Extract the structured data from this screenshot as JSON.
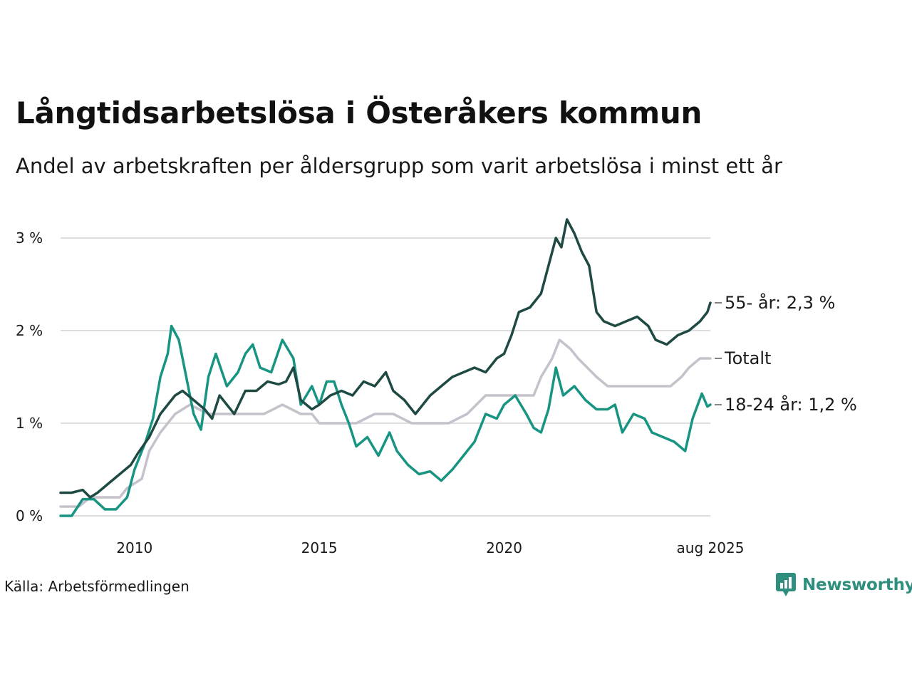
{
  "header": {
    "title": "Långtidsarbetslösa i Österåkers kommun",
    "subtitle": "Andel av arbetskraften per åldersgrupp som varit arbetslösa i minst ett år"
  },
  "footer": {
    "source": "Källa: Arbetsförmedlingen",
    "brand": "Newsworthy"
  },
  "colors": {
    "age_55": "#1f4a44",
    "total": "#c5c2cc",
    "age_18_24": "#189483",
    "grid": "#dddddd"
  },
  "chart_data": {
    "type": "line",
    "x_range": [
      2008.0,
      2025.58
    ],
    "ylim": [
      0,
      3.3
    ],
    "y_ticks": [
      {
        "value": 0,
        "label": "0 %"
      },
      {
        "value": 1,
        "label": "1 %"
      },
      {
        "value": 2,
        "label": "2 %"
      },
      {
        "value": 3,
        "label": "3 %"
      }
    ],
    "x_ticks": [
      {
        "value": 2010,
        "label": "2010"
      },
      {
        "value": 2015,
        "label": "2015"
      },
      {
        "value": 2020,
        "label": "2020"
      },
      {
        "value": 2025.58,
        "label": "aug 2025"
      }
    ],
    "grid": true,
    "series": [
      {
        "key": "total",
        "name": "Totalt",
        "end_label": "Totalt",
        "color": "#c5c2cc",
        "points": [
          [
            2008.0,
            0.1
          ],
          [
            2008.5,
            0.1
          ],
          [
            2008.8,
            0.2
          ],
          [
            2009.2,
            0.2
          ],
          [
            2009.6,
            0.2
          ],
          [
            2009.8,
            0.3
          ],
          [
            2010.2,
            0.4
          ],
          [
            2010.4,
            0.7
          ],
          [
            2010.7,
            0.9
          ],
          [
            2010.9,
            1.0
          ],
          [
            2011.1,
            1.1
          ],
          [
            2011.5,
            1.2
          ],
          [
            2012.0,
            1.1
          ],
          [
            2012.5,
            1.1
          ],
          [
            2013.0,
            1.1
          ],
          [
            2013.5,
            1.1
          ],
          [
            2014.0,
            1.2
          ],
          [
            2014.5,
            1.1
          ],
          [
            2014.8,
            1.1
          ],
          [
            2015.0,
            1.0
          ],
          [
            2015.5,
            1.0
          ],
          [
            2016.0,
            1.0
          ],
          [
            2016.5,
            1.1
          ],
          [
            2017.0,
            1.1
          ],
          [
            2017.5,
            1.0
          ],
          [
            2018.0,
            1.0
          ],
          [
            2018.5,
            1.0
          ],
          [
            2019.0,
            1.1
          ],
          [
            2019.5,
            1.3
          ],
          [
            2020.0,
            1.3
          ],
          [
            2020.5,
            1.3
          ],
          [
            2020.8,
            1.3
          ],
          [
            2021.0,
            1.5
          ],
          [
            2021.3,
            1.7
          ],
          [
            2021.5,
            1.9
          ],
          [
            2021.8,
            1.8
          ],
          [
            2022.0,
            1.7
          ],
          [
            2022.5,
            1.5
          ],
          [
            2022.8,
            1.4
          ],
          [
            2023.2,
            1.4
          ],
          [
            2023.6,
            1.4
          ],
          [
            2024.0,
            1.4
          ],
          [
            2024.5,
            1.4
          ],
          [
            2024.8,
            1.5
          ],
          [
            2025.0,
            1.6
          ],
          [
            2025.3,
            1.7
          ],
          [
            2025.58,
            1.7
          ]
        ]
      },
      {
        "key": "age_18_24",
        "name": "18-24 år",
        "end_label": "18-24 år: 1,2 %",
        "color": "#189483",
        "points": [
          [
            2008.0,
            0.0
          ],
          [
            2008.3,
            0.0
          ],
          [
            2008.6,
            0.18
          ],
          [
            2008.9,
            0.18
          ],
          [
            2009.2,
            0.07
          ],
          [
            2009.5,
            0.07
          ],
          [
            2009.8,
            0.2
          ],
          [
            2010.0,
            0.5
          ],
          [
            2010.3,
            0.8
          ],
          [
            2010.5,
            1.05
          ],
          [
            2010.7,
            1.5
          ],
          [
            2010.9,
            1.75
          ],
          [
            2011.0,
            2.05
          ],
          [
            2011.2,
            1.9
          ],
          [
            2011.4,
            1.5
          ],
          [
            2011.6,
            1.1
          ],
          [
            2011.8,
            0.93
          ],
          [
            2012.0,
            1.5
          ],
          [
            2012.2,
            1.75
          ],
          [
            2012.5,
            1.4
          ],
          [
            2012.8,
            1.55
          ],
          [
            2013.0,
            1.75
          ],
          [
            2013.2,
            1.85
          ],
          [
            2013.4,
            1.6
          ],
          [
            2013.7,
            1.55
          ],
          [
            2014.0,
            1.9
          ],
          [
            2014.3,
            1.7
          ],
          [
            2014.5,
            1.2
          ],
          [
            2014.8,
            1.4
          ],
          [
            2015.0,
            1.2
          ],
          [
            2015.2,
            1.45
          ],
          [
            2015.4,
            1.45
          ],
          [
            2015.6,
            1.2
          ],
          [
            2015.8,
            1.0
          ],
          [
            2016.0,
            0.75
          ],
          [
            2016.3,
            0.85
          ],
          [
            2016.6,
            0.65
          ],
          [
            2016.9,
            0.9
          ],
          [
            2017.1,
            0.7
          ],
          [
            2017.4,
            0.55
          ],
          [
            2017.7,
            0.45
          ],
          [
            2018.0,
            0.48
          ],
          [
            2018.3,
            0.38
          ],
          [
            2018.6,
            0.5
          ],
          [
            2018.9,
            0.65
          ],
          [
            2019.2,
            0.8
          ],
          [
            2019.5,
            1.1
          ],
          [
            2019.8,
            1.05
          ],
          [
            2020.0,
            1.2
          ],
          [
            2020.3,
            1.3
          ],
          [
            2020.6,
            1.1
          ],
          [
            2020.8,
            0.95
          ],
          [
            2021.0,
            0.9
          ],
          [
            2021.2,
            1.15
          ],
          [
            2021.4,
            1.6
          ],
          [
            2021.6,
            1.3
          ],
          [
            2021.9,
            1.4
          ],
          [
            2022.2,
            1.25
          ],
          [
            2022.5,
            1.15
          ],
          [
            2022.8,
            1.15
          ],
          [
            2023.0,
            1.2
          ],
          [
            2023.2,
            0.9
          ],
          [
            2023.5,
            1.1
          ],
          [
            2023.8,
            1.05
          ],
          [
            2024.0,
            0.9
          ],
          [
            2024.3,
            0.85
          ],
          [
            2024.6,
            0.8
          ],
          [
            2024.9,
            0.7
          ],
          [
            2025.1,
            1.05
          ],
          [
            2025.35,
            1.32
          ],
          [
            2025.5,
            1.18
          ],
          [
            2025.58,
            1.2
          ]
        ]
      },
      {
        "key": "age_55",
        "name": "55- år",
        "end_label": "55- år: 2,3 %",
        "color": "#1f4a44",
        "points": [
          [
            2008.0,
            0.25
          ],
          [
            2008.3,
            0.25
          ],
          [
            2008.6,
            0.28
          ],
          [
            2008.8,
            0.2
          ],
          [
            2009.0,
            0.25
          ],
          [
            2009.3,
            0.35
          ],
          [
            2009.6,
            0.45
          ],
          [
            2009.9,
            0.55
          ],
          [
            2010.1,
            0.68
          ],
          [
            2010.4,
            0.85
          ],
          [
            2010.7,
            1.1
          ],
          [
            2010.9,
            1.2
          ],
          [
            2011.1,
            1.3
          ],
          [
            2011.3,
            1.35
          ],
          [
            2011.6,
            1.25
          ],
          [
            2011.9,
            1.15
          ],
          [
            2012.1,
            1.05
          ],
          [
            2012.3,
            1.3
          ],
          [
            2012.5,
            1.2
          ],
          [
            2012.7,
            1.1
          ],
          [
            2013.0,
            1.35
          ],
          [
            2013.3,
            1.35
          ],
          [
            2013.6,
            1.45
          ],
          [
            2013.9,
            1.42
          ],
          [
            2014.1,
            1.45
          ],
          [
            2014.3,
            1.6
          ],
          [
            2014.5,
            1.25
          ],
          [
            2014.8,
            1.15
          ],
          [
            2015.0,
            1.2
          ],
          [
            2015.3,
            1.3
          ],
          [
            2015.6,
            1.35
          ],
          [
            2015.9,
            1.3
          ],
          [
            2016.2,
            1.45
          ],
          [
            2016.5,
            1.4
          ],
          [
            2016.8,
            1.55
          ],
          [
            2017.0,
            1.35
          ],
          [
            2017.3,
            1.25
          ],
          [
            2017.6,
            1.1
          ],
          [
            2017.8,
            1.2
          ],
          [
            2018.0,
            1.3
          ],
          [
            2018.3,
            1.4
          ],
          [
            2018.6,
            1.5
          ],
          [
            2018.9,
            1.55
          ],
          [
            2019.2,
            1.6
          ],
          [
            2019.5,
            1.55
          ],
          [
            2019.8,
            1.7
          ],
          [
            2020.0,
            1.75
          ],
          [
            2020.2,
            1.95
          ],
          [
            2020.4,
            2.2
          ],
          [
            2020.7,
            2.25
          ],
          [
            2021.0,
            2.4
          ],
          [
            2021.2,
            2.7
          ],
          [
            2021.4,
            3.0
          ],
          [
            2021.55,
            2.9
          ],
          [
            2021.7,
            3.2
          ],
          [
            2021.9,
            3.05
          ],
          [
            2022.1,
            2.85
          ],
          [
            2022.3,
            2.7
          ],
          [
            2022.5,
            2.2
          ],
          [
            2022.7,
            2.1
          ],
          [
            2023.0,
            2.05
          ],
          [
            2023.3,
            2.1
          ],
          [
            2023.6,
            2.15
          ],
          [
            2023.9,
            2.05
          ],
          [
            2024.1,
            1.9
          ],
          [
            2024.4,
            1.85
          ],
          [
            2024.7,
            1.95
          ],
          [
            2025.0,
            2.0
          ],
          [
            2025.3,
            2.1
          ],
          [
            2025.5,
            2.2
          ],
          [
            2025.58,
            2.3
          ]
        ]
      }
    ]
  }
}
